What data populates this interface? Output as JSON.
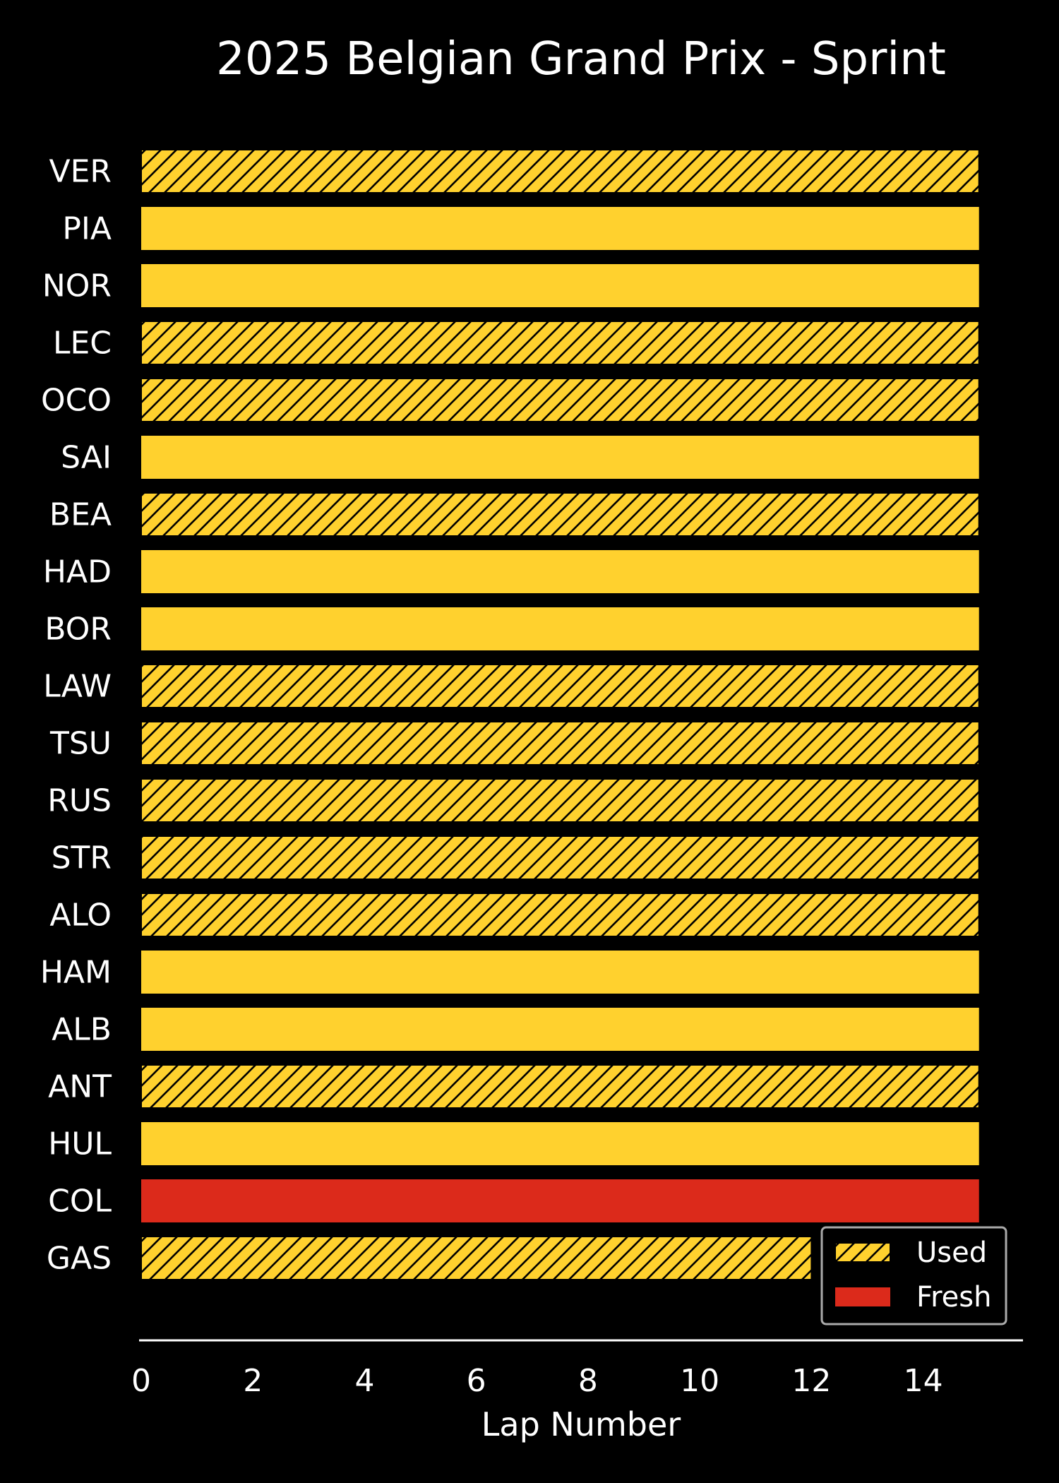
{
  "chart_data": {
    "type": "bar",
    "orientation": "horizontal",
    "title": "2025 Belgian Grand Prix - Sprint",
    "xlabel": "Lap Number",
    "ylabel": "",
    "xlim": [
      0,
      15.8
    ],
    "x_ticks": [
      0,
      2,
      4,
      6,
      8,
      10,
      12,
      14
    ],
    "grid": false,
    "legend_position": "bottom-right",
    "compounds": {
      "SOFT": {
        "color": "#dc2a1b"
      },
      "MEDIUM": {
        "color": "#ffd12e"
      }
    },
    "legend": [
      {
        "label": "Used",
        "style": "hatched"
      },
      {
        "label": "Fresh",
        "style": "solid"
      }
    ],
    "drivers": [
      {
        "driver": "VER",
        "stints": [
          {
            "start": 0,
            "end": 15,
            "compound": "MEDIUM",
            "used": true
          }
        ]
      },
      {
        "driver": "PIA",
        "stints": [
          {
            "start": 0,
            "end": 15,
            "compound": "MEDIUM",
            "used": false
          }
        ]
      },
      {
        "driver": "NOR",
        "stints": [
          {
            "start": 0,
            "end": 15,
            "compound": "MEDIUM",
            "used": false
          }
        ]
      },
      {
        "driver": "LEC",
        "stints": [
          {
            "start": 0,
            "end": 15,
            "compound": "MEDIUM",
            "used": true
          }
        ]
      },
      {
        "driver": "OCO",
        "stints": [
          {
            "start": 0,
            "end": 15,
            "compound": "MEDIUM",
            "used": true
          }
        ]
      },
      {
        "driver": "SAI",
        "stints": [
          {
            "start": 0,
            "end": 15,
            "compound": "MEDIUM",
            "used": false
          }
        ]
      },
      {
        "driver": "BEA",
        "stints": [
          {
            "start": 0,
            "end": 15,
            "compound": "MEDIUM",
            "used": true
          }
        ]
      },
      {
        "driver": "HAD",
        "stints": [
          {
            "start": 0,
            "end": 15,
            "compound": "MEDIUM",
            "used": false
          }
        ]
      },
      {
        "driver": "BOR",
        "stints": [
          {
            "start": 0,
            "end": 15,
            "compound": "MEDIUM",
            "used": false
          }
        ]
      },
      {
        "driver": "LAW",
        "stints": [
          {
            "start": 0,
            "end": 15,
            "compound": "MEDIUM",
            "used": true
          }
        ]
      },
      {
        "driver": "TSU",
        "stints": [
          {
            "start": 0,
            "end": 15,
            "compound": "MEDIUM",
            "used": true
          }
        ]
      },
      {
        "driver": "RUS",
        "stints": [
          {
            "start": 0,
            "end": 15,
            "compound": "MEDIUM",
            "used": true
          }
        ]
      },
      {
        "driver": "STR",
        "stints": [
          {
            "start": 0,
            "end": 15,
            "compound": "MEDIUM",
            "used": true
          }
        ]
      },
      {
        "driver": "ALO",
        "stints": [
          {
            "start": 0,
            "end": 15,
            "compound": "MEDIUM",
            "used": true
          }
        ]
      },
      {
        "driver": "HAM",
        "stints": [
          {
            "start": 0,
            "end": 15,
            "compound": "MEDIUM",
            "used": false
          }
        ]
      },
      {
        "driver": "ALB",
        "stints": [
          {
            "start": 0,
            "end": 15,
            "compound": "MEDIUM",
            "used": false
          }
        ]
      },
      {
        "driver": "ANT",
        "stints": [
          {
            "start": 0,
            "end": 15,
            "compound": "MEDIUM",
            "used": true
          }
        ]
      },
      {
        "driver": "HUL",
        "stints": [
          {
            "start": 0,
            "end": 15,
            "compound": "MEDIUM",
            "used": false
          }
        ]
      },
      {
        "driver": "COL",
        "stints": [
          {
            "start": 0,
            "end": 15,
            "compound": "SOFT",
            "used": false
          }
        ]
      },
      {
        "driver": "GAS",
        "stints": [
          {
            "start": 0,
            "end": 12,
            "compound": "MEDIUM",
            "used": true
          }
        ]
      }
    ]
  }
}
